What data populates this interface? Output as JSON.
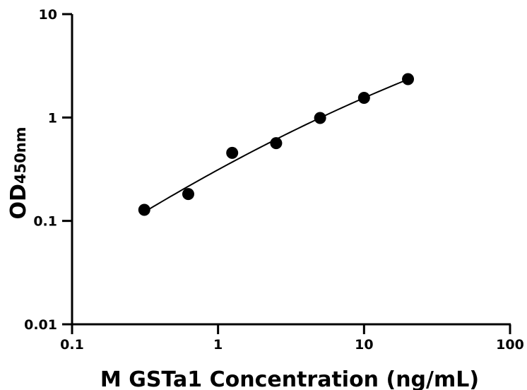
{
  "chart_data": {
    "type": "scatter",
    "xlabel": "M GSTa1 Concentration (ng/mL)",
    "ylabel_main": "OD",
    "ylabel_sub": "450nm",
    "x_scale": "log",
    "y_scale": "log",
    "xlim": [
      0.1,
      100
    ],
    "ylim": [
      0.01,
      10
    ],
    "x_ticks": [
      0.1,
      1,
      10,
      100
    ],
    "x_tick_labels": [
      "0.1",
      "1",
      "10",
      "100"
    ],
    "y_ticks": [
      0.01,
      0.1,
      1,
      10
    ],
    "y_tick_labels": [
      "0.01",
      "0.1",
      "1",
      "10"
    ],
    "grid": false,
    "legend": false,
    "series": [
      {
        "x": [
          0.3125,
          0.625,
          1.25,
          2.5,
          5,
          10,
          20
        ],
        "y": [
          0.128,
          0.182,
          0.455,
          0.565,
          0.99,
          1.55,
          2.35
        ],
        "fit_line": true
      }
    ]
  }
}
